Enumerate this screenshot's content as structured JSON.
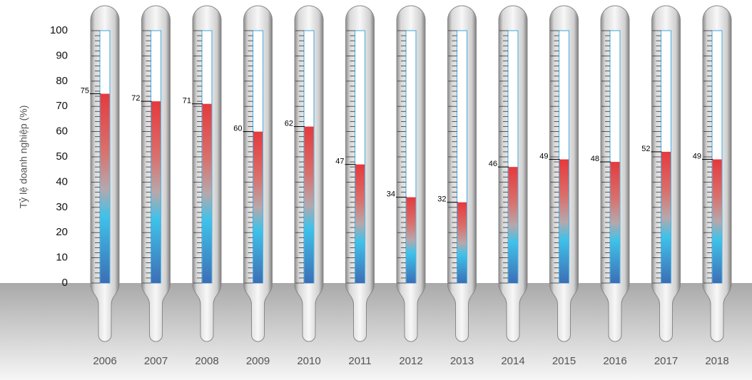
{
  "chart_data": {
    "type": "bar",
    "y_label": "Tỷ lệ doanh nghiệp (%)",
    "categories": [
      "2006",
      "2007",
      "2008",
      "2009",
      "2010",
      "2011",
      "2012",
      "2013",
      "2014",
      "2015",
      "2016",
      "2017",
      "2018"
    ],
    "values": [
      75,
      72,
      71,
      60,
      62,
      47,
      34,
      32,
      46,
      49,
      48,
      52,
      49
    ],
    "ylim": [
      0,
      100
    ],
    "yticks": [
      0,
      10,
      20,
      30,
      40,
      50,
      60,
      70,
      80,
      90,
      100
    ]
  }
}
